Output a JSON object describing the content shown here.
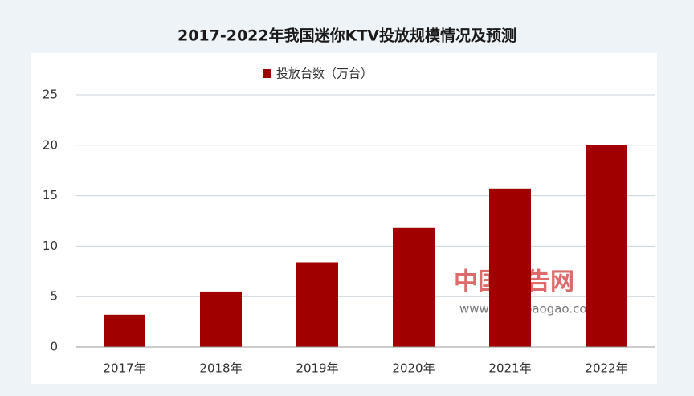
{
  "chart_data": {
    "type": "bar",
    "title": "2017-2022年我国迷你KTV投放规模情况及预测",
    "categories": [
      "2017年",
      "2018年",
      "2019年",
      "2020年",
      "2021年",
      "2022年"
    ],
    "series": [
      {
        "name": "投放台数（万台）",
        "color": "#a00000",
        "values": [
          3.2,
          5.5,
          8.4,
          11.8,
          15.7,
          20
        ]
      }
    ],
    "ylim": [
      0,
      25
    ],
    "yticks": [
      0,
      5,
      10,
      15,
      20,
      25
    ],
    "grid": true,
    "legend": "top",
    "watermark": [
      "中国报告网",
      "www.chinabaogao.com"
    ]
  }
}
